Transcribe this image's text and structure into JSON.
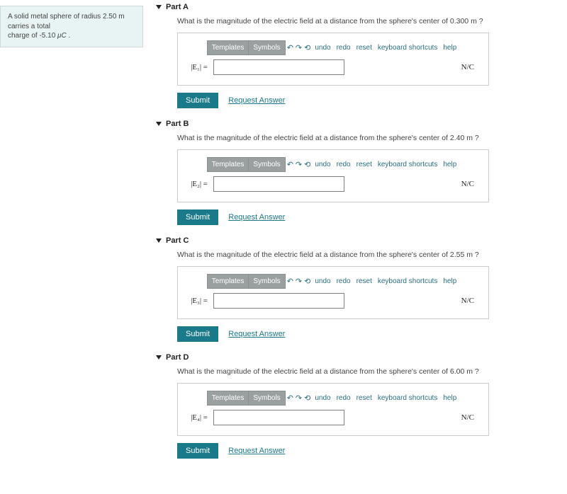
{
  "problem_text_1": "A solid metal sphere of radius 2.50 m carries a total",
  "problem_text_2": "charge of -5.10 ",
  "problem_unit": "μC",
  "parts": [
    {
      "title": "Part A",
      "prompt": "What is the magnitude of the electric field at a distance from the sphere's center of 0.300 m ?",
      "var": "|E₁| =",
      "units": "N/C"
    },
    {
      "title": "Part B",
      "prompt": "What is the magnitude of the electric field at a distance from the sphere's center of 2.40 m ?",
      "var": "|E₂| =",
      "units": "N/C"
    },
    {
      "title": "Part C",
      "prompt": "What is the magnitude of the electric field at a distance from the sphere's center of 2.55 m ?",
      "var": "|E₃| =",
      "units": "N/C"
    },
    {
      "title": "Part D",
      "prompt": "What is the magnitude of the electric field at a distance from the sphere's center of 6.00 m ?",
      "var": "|E₄| =",
      "units": "N/C"
    }
  ],
  "toolbar": {
    "templates": "Templates",
    "symbols": "Symbols",
    "undo": "undo",
    "redo": "redo",
    "reset": "reset",
    "keyboard": "keyboard shortcuts",
    "help": "help"
  },
  "submit_label": "Submit",
  "request_label": "Request Answer"
}
